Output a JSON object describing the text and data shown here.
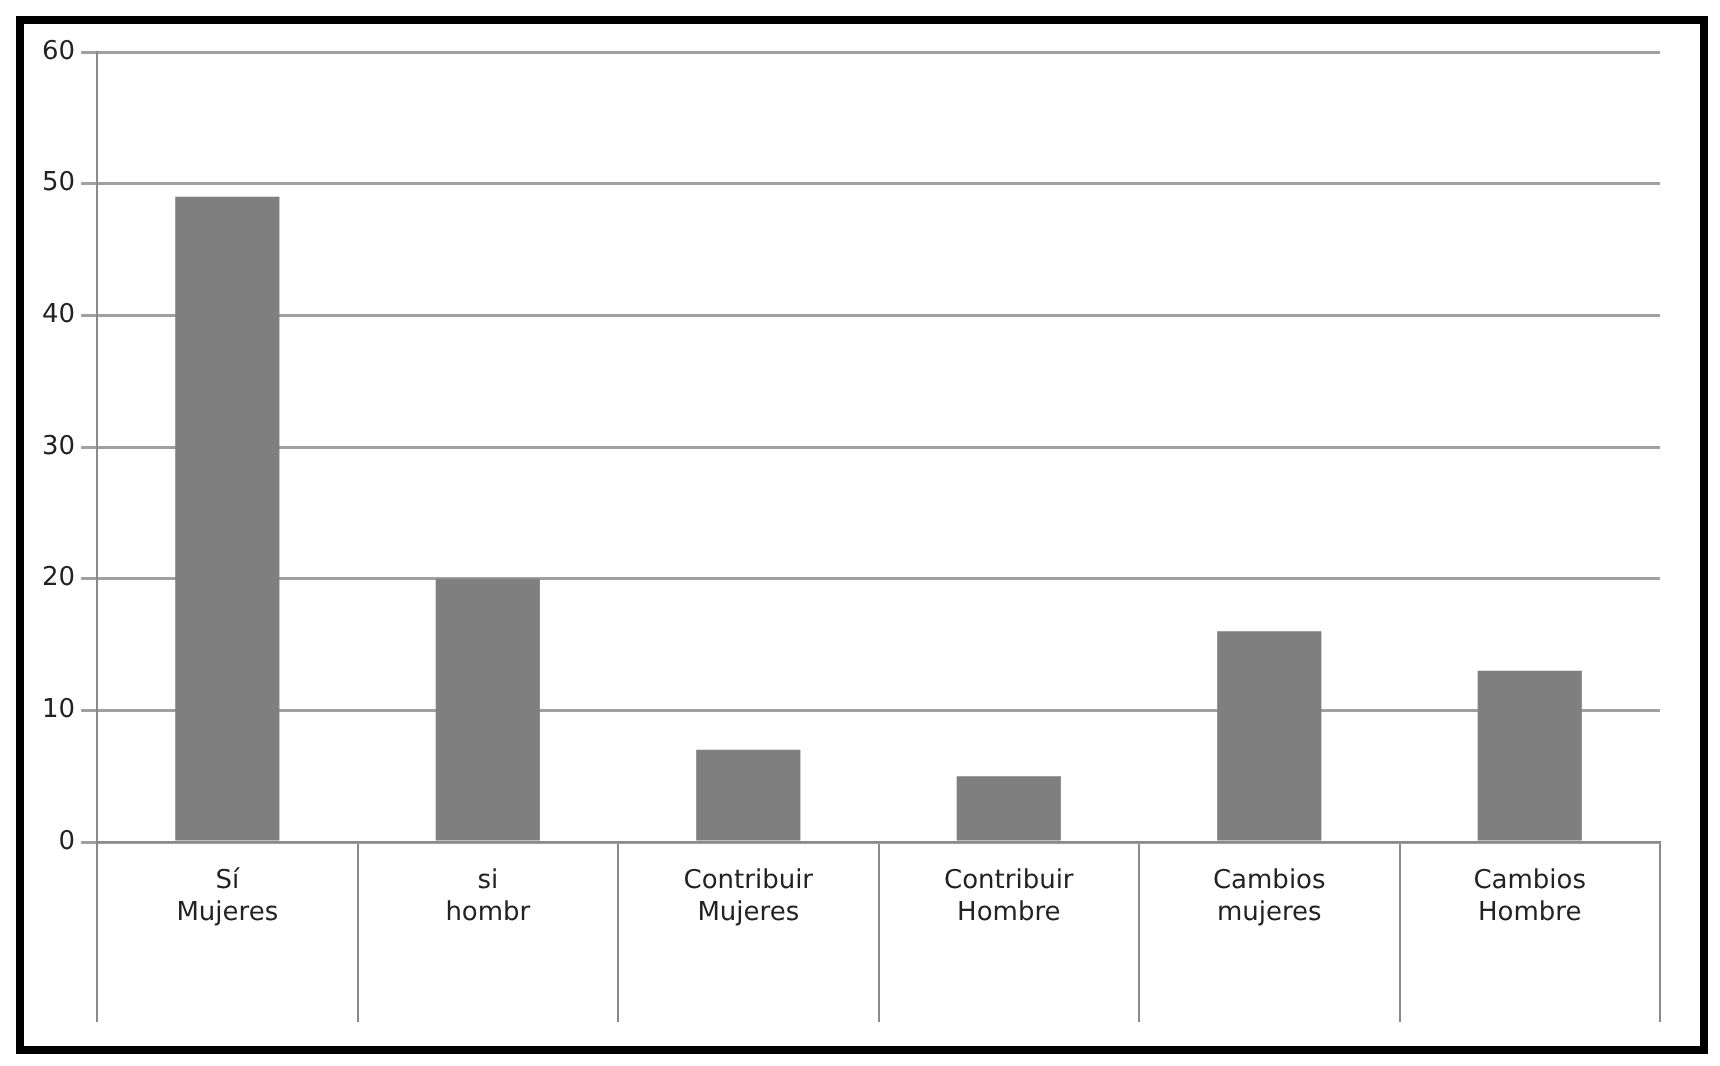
{
  "chart_data": {
    "type": "bar",
    "categories": [
      "Sí\nMujeres",
      "si\nhombr",
      "Contribuir\nMujeres",
      "Contribuir\nHombre",
      "Cambios\nmujeres",
      "Cambios\nHombre"
    ],
    "values": [
      49,
      20,
      7,
      5,
      16,
      13
    ],
    "color": "#7f7f7f",
    "ylim": [
      0,
      60
    ],
    "yticks": [
      0,
      10,
      20,
      30,
      40,
      50,
      60
    ],
    "grid": "y",
    "legend": false
  }
}
